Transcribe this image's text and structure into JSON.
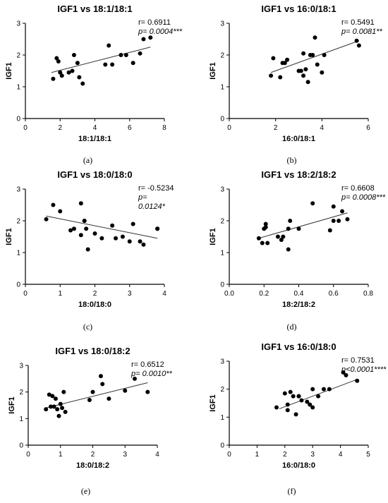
{
  "chart_data": [
    {
      "type": "scatter",
      "panel": "(a)",
      "title": "IGF1 vs 18:1/18:1",
      "xlabel": "18:1/18:1",
      "ylabel": "IGF1",
      "xlim": [
        0,
        8
      ],
      "ylim": [
        0,
        3
      ],
      "xticks": [
        "0",
        "2",
        "4",
        "6",
        "8"
      ],
      "yticks": [
        "0",
        "1",
        "2",
        "3"
      ],
      "stat_lines": [
        "r= 0.6911",
        "p= 0.0004***"
      ],
      "x": [
        1.6,
        1.8,
        1.9,
        2.0,
        2.1,
        2.5,
        2.7,
        2.8,
        3.0,
        3.1,
        3.3,
        4.6,
        4.8,
        5.0,
        5.5,
        5.8,
        6.2,
        6.6,
        6.8,
        7.2
      ],
      "y": [
        1.25,
        1.9,
        1.8,
        1.45,
        1.35,
        1.45,
        1.5,
        2.0,
        1.75,
        1.3,
        1.1,
        1.7,
        2.3,
        1.7,
        2.0,
        2.0,
        1.75,
        2.05,
        2.5,
        2.55
      ],
      "fit": [
        [
          1.5,
          1.45
        ],
        [
          7.2,
          2.25
        ]
      ]
    },
    {
      "type": "scatter",
      "panel": "(b)",
      "title": "IGF1 vs 16:0/18:1",
      "xlabel": "16:0/18:1",
      "ylabel": "IGF1",
      "xlim": [
        0,
        6
      ],
      "ylim": [
        0,
        3
      ],
      "xticks": [
        "0",
        "2",
        "4",
        "6"
      ],
      "yticks": [
        "0",
        "1",
        "2",
        "3"
      ],
      "stat_lines": [
        "r= 0.5491",
        "p= 0.0081**"
      ],
      "x": [
        1.8,
        1.9,
        2.2,
        2.3,
        2.4,
        2.5,
        3.0,
        3.1,
        3.2,
        3.2,
        3.3,
        3.4,
        3.5,
        3.6,
        3.7,
        3.8,
        4.0,
        4.1,
        5.5,
        5.6
      ],
      "y": [
        1.35,
        1.9,
        1.3,
        1.75,
        1.75,
        1.85,
        1.5,
        1.5,
        2.05,
        1.35,
        1.55,
        1.15,
        2.0,
        2.0,
        2.55,
        1.7,
        1.45,
        2.0,
        2.45,
        2.3
      ],
      "fit": [
        [
          1.8,
          1.45
        ],
        [
          5.6,
          2.45
        ]
      ]
    },
    {
      "type": "scatter",
      "panel": "(c)",
      "title": "IGF1 vs 18:0/18:0",
      "xlabel": "18:0/18:0",
      "ylabel": "IGF1",
      "xlim": [
        0,
        4
      ],
      "ylim": [
        0,
        3
      ],
      "xticks": [
        "0",
        "1",
        "2",
        "3",
        "4"
      ],
      "yticks": [
        "0",
        "1",
        "2",
        "3"
      ],
      "stat_lines": [
        "r= -0.5234",
        "p=",
        "0.0124*"
      ],
      "x": [
        0.6,
        0.8,
        1.0,
        1.3,
        1.4,
        1.6,
        1.6,
        1.7,
        1.7,
        1.75,
        1.8,
        2.0,
        2.2,
        2.5,
        2.6,
        2.8,
        3.0,
        3.1,
        3.3,
        3.4,
        3.8,
        3.8
      ],
      "y": [
        2.05,
        2.5,
        2.3,
        1.7,
        1.75,
        1.55,
        2.55,
        2.0,
        2.0,
        1.75,
        1.1,
        1.6,
        1.45,
        1.85,
        1.45,
        1.5,
        1.35,
        1.9,
        1.35,
        1.25,
        1.75,
        1.75
      ],
      "fit": [
        [
          0.6,
          2.15
        ],
        [
          3.8,
          1.45
        ]
      ]
    },
    {
      "type": "scatter",
      "panel": "(d)",
      "title": "IGF1 vs 18:2/18:2",
      "xlabel": "18:2/18:2",
      "ylabel": "IGF1",
      "xlim": [
        0,
        0.8
      ],
      "ylim": [
        0,
        3
      ],
      "xticks": [
        "0.0",
        "0.2",
        "0.4",
        "0.6",
        "0.8"
      ],
      "yticks": [
        "0",
        "1",
        "2",
        "3"
      ],
      "stat_lines": [
        "r= 0.6608",
        "p= 0.0008***"
      ],
      "x": [
        0.17,
        0.19,
        0.2,
        0.21,
        0.21,
        0.22,
        0.28,
        0.3,
        0.31,
        0.34,
        0.34,
        0.35,
        0.4,
        0.48,
        0.58,
        0.6,
        0.6,
        0.63,
        0.65,
        0.68
      ],
      "y": [
        1.45,
        1.3,
        1.75,
        1.9,
        1.8,
        1.3,
        1.5,
        1.4,
        1.5,
        1.75,
        1.1,
        2.0,
        1.75,
        2.55,
        1.7,
        2.45,
        2.0,
        2.0,
        2.3,
        2.05
      ],
      "fit": [
        [
          0.17,
          1.45
        ],
        [
          0.68,
          2.25
        ]
      ]
    },
    {
      "type": "scatter",
      "panel": "(e)",
      "title": "IGF1 vs 18:0/18:2",
      "xlabel": "18:0/18:2",
      "ylabel": "IGF1",
      "xlim": [
        0,
        4
      ],
      "ylim": [
        0,
        3
      ],
      "xticks": [
        "0",
        "1",
        "2",
        "3",
        "4"
      ],
      "yticks": [
        "0",
        "1",
        "2",
        "3"
      ],
      "stat_lines": [
        "r= 0.6512",
        "p= 0.0010**"
      ],
      "x": [
        0.55,
        0.65,
        0.7,
        0.75,
        0.8,
        0.85,
        0.9,
        0.95,
        1.0,
        1.05,
        1.1,
        1.15,
        1.9,
        2.0,
        2.25,
        2.3,
        2.5,
        3.0,
        3.3,
        3.7
      ],
      "y": [
        1.35,
        1.9,
        1.45,
        1.85,
        1.45,
        1.75,
        1.35,
        1.1,
        1.55,
        1.4,
        2.0,
        1.25,
        1.7,
        2.0,
        2.6,
        2.3,
        1.75,
        2.05,
        2.5,
        2.0
      ],
      "fit": [
        [
          0.55,
          1.4
        ],
        [
          3.7,
          2.35
        ]
      ]
    },
    {
      "type": "scatter",
      "panel": "(f)",
      "title": "IGF1 vs 16:0/18:0",
      "xlabel": "16:0/18:0",
      "ylabel": "IGF1",
      "xlim": [
        0,
        5
      ],
      "ylim": [
        0,
        3
      ],
      "xticks": [
        "0",
        "1",
        "2",
        "3",
        "4",
        "5"
      ],
      "yticks": [
        "0",
        "1",
        "2",
        "3"
      ],
      "stat_lines": [
        "r= 0.7531",
        "p<0.0001****"
      ],
      "x": [
        1.7,
        2.0,
        2.1,
        2.2,
        2.3,
        2.4,
        2.5,
        2.6,
        2.8,
        2.9,
        3.0,
        3.0,
        3.2,
        3.4,
        3.6,
        4.1,
        4.2,
        4.6,
        2.1,
        2.5
      ],
      "y": [
        1.35,
        1.85,
        1.45,
        1.9,
        1.75,
        1.1,
        1.75,
        1.6,
        1.55,
        1.45,
        2.0,
        1.35,
        1.75,
        2.0,
        2.0,
        2.6,
        2.5,
        2.3,
        1.25,
        1.75
      ],
      "fit": [
        [
          1.8,
          1.3
        ],
        [
          4.6,
          2.35
        ]
      ]
    }
  ],
  "captions": [
    "(a)",
    "(b)",
    "(c)",
    "(d)",
    "(e)",
    "(f)"
  ]
}
